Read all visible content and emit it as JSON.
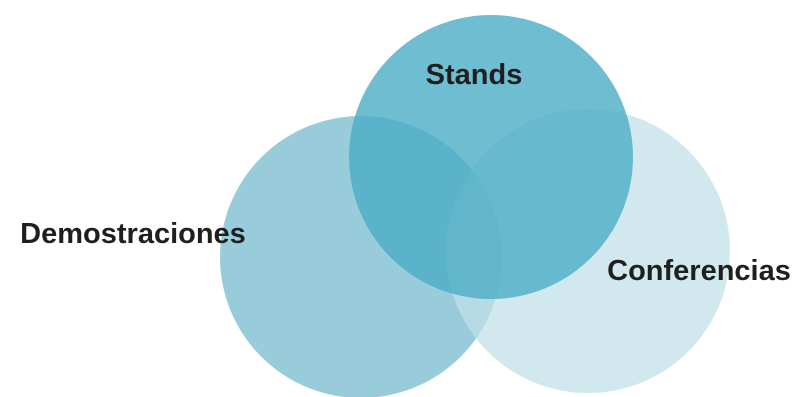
{
  "diagram": {
    "type": "venn",
    "sets": [
      {
        "id": "demostraciones",
        "label": "Demostraciones",
        "color": "#86c3d3"
      },
      {
        "id": "stands",
        "label": "Stands",
        "color": "#4bacc6"
      },
      {
        "id": "conferencias",
        "label": "Conferencias",
        "color": "#c2e0e8"
      }
    ]
  }
}
